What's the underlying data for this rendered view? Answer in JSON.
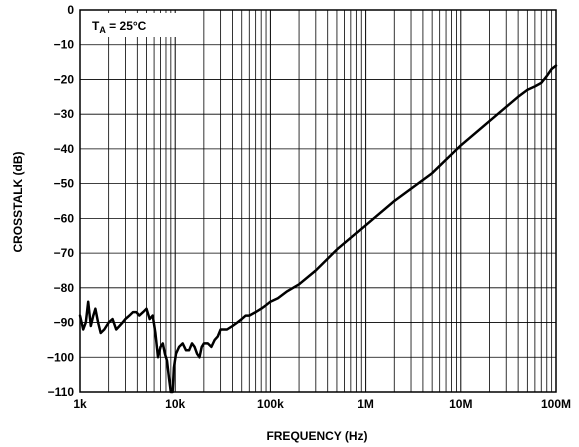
{
  "chart_data": {
    "type": "line",
    "title": "",
    "xlabel": "FREQUENCY (Hz)",
    "ylabel": "CROSSTALK (dB)",
    "x_scale": "log",
    "xlim": [
      1000,
      100000000
    ],
    "ylim": [
      -110,
      0
    ],
    "x_ticks": [
      {
        "value": 1000,
        "label": "1k"
      },
      {
        "value": 10000,
        "label": "10k"
      },
      {
        "value": 100000,
        "label": "100k"
      },
      {
        "value": 1000000,
        "label": "1M"
      },
      {
        "value": 10000000,
        "label": "10M"
      },
      {
        "value": 100000000,
        "label": "100M"
      }
    ],
    "y_ticks": [
      {
        "value": 0,
        "label": "0"
      },
      {
        "value": -10,
        "label": "−10"
      },
      {
        "value": -20,
        "label": "−20"
      },
      {
        "value": -30,
        "label": "−30"
      },
      {
        "value": -40,
        "label": "−40"
      },
      {
        "value": -50,
        "label": "−50"
      },
      {
        "value": -60,
        "label": "−60"
      },
      {
        "value": -70,
        "label": "−70"
      },
      {
        "value": -80,
        "label": "−80"
      },
      {
        "value": -90,
        "label": "−90"
      },
      {
        "value": -100,
        "label": "−100"
      },
      {
        "value": -110,
        "label": "−110"
      }
    ],
    "grid": true,
    "annotation": {
      "main": "T",
      "sub": "A",
      "rest": " = 25°C",
      "position": "top-left"
    },
    "series": [
      {
        "color": "#000000",
        "points": [
          [
            1000,
            -88
          ],
          [
            1080,
            -92
          ],
          [
            1150,
            -90
          ],
          [
            1220,
            -84
          ],
          [
            1300,
            -91
          ],
          [
            1380,
            -88
          ],
          [
            1450,
            -86
          ],
          [
            1550,
            -90
          ],
          [
            1650,
            -93
          ],
          [
            1800,
            -92
          ],
          [
            2000,
            -90
          ],
          [
            2200,
            -89
          ],
          [
            2400,
            -92
          ],
          [
            2600,
            -91
          ],
          [
            2800,
            -90
          ],
          [
            3000,
            -89
          ],
          [
            3300,
            -88
          ],
          [
            3600,
            -87
          ],
          [
            3900,
            -87
          ],
          [
            4200,
            -88
          ],
          [
            4600,
            -87
          ],
          [
            5000,
            -86
          ],
          [
            5400,
            -89
          ],
          [
            5800,
            -88
          ],
          [
            6200,
            -93
          ],
          [
            6600,
            -100
          ],
          [
            7000,
            -97
          ],
          [
            7400,
            -96
          ],
          [
            7800,
            -99
          ],
          [
            8200,
            -101
          ],
          [
            8600,
            -106
          ],
          [
            9000,
            -110
          ],
          [
            9400,
            -110
          ],
          [
            9700,
            -103
          ],
          [
            10200,
            -99
          ],
          [
            11000,
            -97
          ],
          [
            12000,
            -96
          ],
          [
            13000,
            -98
          ],
          [
            14000,
            -98
          ],
          [
            15000,
            -96
          ],
          [
            16000,
            -97
          ],
          [
            17000,
            -99
          ],
          [
            18000,
            -100
          ],
          [
            19000,
            -97
          ],
          [
            20000,
            -96
          ],
          [
            22000,
            -96
          ],
          [
            24000,
            -97
          ],
          [
            26000,
            -95
          ],
          [
            28000,
            -94
          ],
          [
            30000,
            -92
          ],
          [
            35000,
            -92
          ],
          [
            40000,
            -91
          ],
          [
            45000,
            -90
          ],
          [
            50000,
            -89
          ],
          [
            55000,
            -88
          ],
          [
            60000,
            -88
          ],
          [
            70000,
            -87
          ],
          [
            80000,
            -86
          ],
          [
            90000,
            -85
          ],
          [
            100000,
            -84
          ],
          [
            120000,
            -83
          ],
          [
            150000,
            -81
          ],
          [
            200000,
            -79
          ],
          [
            300000,
            -75
          ],
          [
            500000,
            -69
          ],
          [
            1000000,
            -62
          ],
          [
            2000000,
            -55
          ],
          [
            5000000,
            -47
          ],
          [
            10000000,
            -39
          ],
          [
            20000000,
            -32
          ],
          [
            40000000,
            -25
          ],
          [
            50000000,
            -23
          ],
          [
            60000000,
            -22
          ],
          [
            70000000,
            -21
          ],
          [
            80000000,
            -19
          ],
          [
            90000000,
            -17
          ],
          [
            100000000,
            -16
          ]
        ]
      }
    ]
  }
}
